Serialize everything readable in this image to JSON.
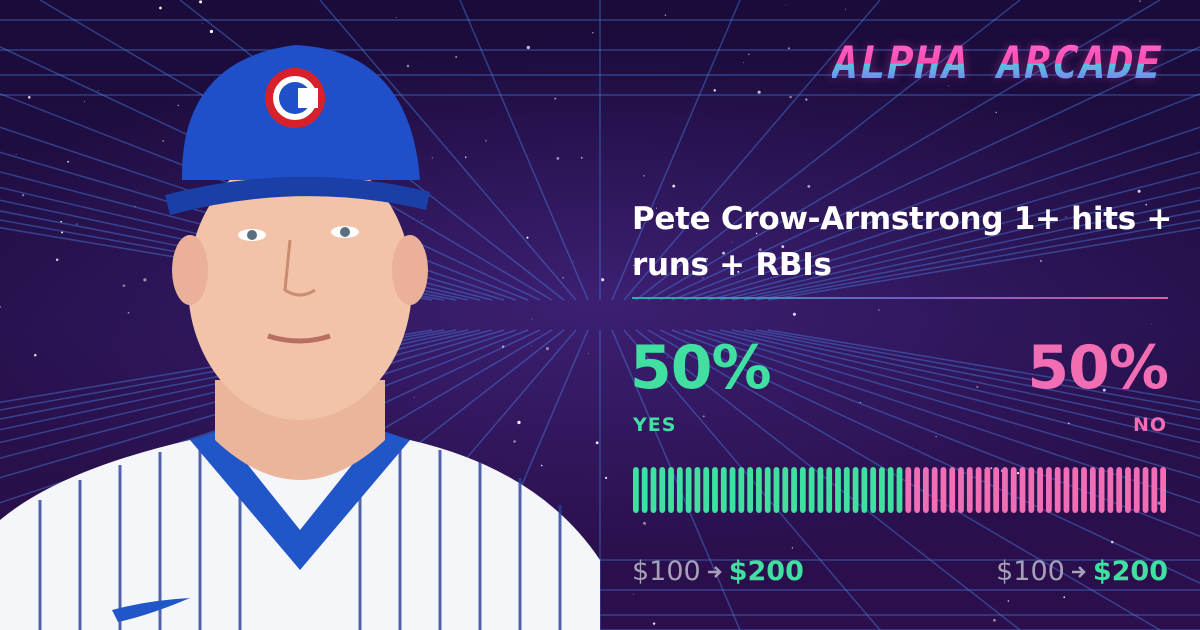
{
  "brand": "ALPHA ARCADE",
  "market": {
    "title": "Pete Crow-Armstrong 1+ hits + runs + RBIs"
  },
  "yes": {
    "percent": {
      "value": 50,
      "label": "50%"
    },
    "label": "YES",
    "stake": "$100",
    "payout": "$200"
  },
  "no": {
    "percent": {
      "value": 50,
      "label": "50%"
    },
    "label": "NO",
    "stake": "$100",
    "payout": "$200"
  }
}
